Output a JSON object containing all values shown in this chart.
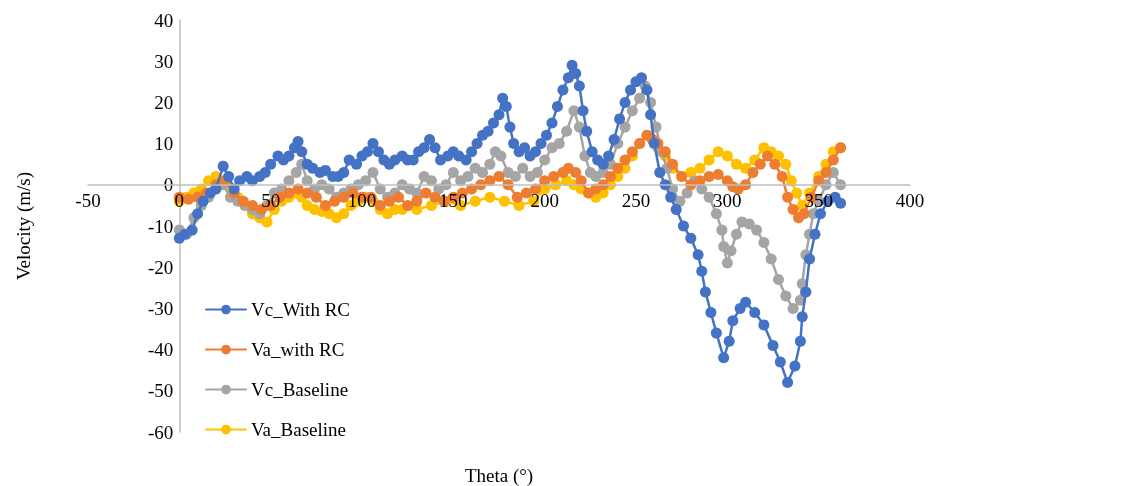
{
  "chart_data": {
    "type": "line",
    "xlabel": "Theta (°)",
    "ylabel": "Velocity (m/s)",
    "xlim": [
      -50,
      400
    ],
    "xticks": [
      -50,
      0,
      50,
      100,
      150,
      200,
      250,
      300,
      350,
      400
    ],
    "ylim": [
      -60,
      40
    ],
    "yticks": [
      -60,
      -50,
      -40,
      -30,
      -20,
      -10,
      0,
      10,
      20,
      30,
      40
    ],
    "grid": false,
    "legend": "bottom left",
    "marker": "circle",
    "line_style": "solid",
    "series": [
      {
        "name": "Vc_With RC",
        "color": "#4472c4",
        "x": [
          0,
          3,
          7,
          10,
          13,
          17,
          20,
          24,
          27,
          30,
          33,
          37,
          40,
          44,
          47,
          50,
          54,
          57,
          60,
          63,
          65,
          67,
          70,
          73,
          77,
          80,
          84,
          87,
          90,
          93,
          97,
          100,
          103,
          106,
          109,
          112,
          115,
          118,
          122,
          125,
          128,
          131,
          134,
          137,
          140,
          143,
          147,
          150,
          153,
          157,
          160,
          163,
          166,
          169,
          172,
          175,
          177,
          179,
          181,
          183,
          186,
          189,
          192,
          195,
          198,
          201,
          204,
          207,
          210,
          213,
          215,
          217,
          219,
          221,
          223,
          226,
          229,
          232,
          235,
          238,
          241,
          244,
          247,
          250,
          253,
          256,
          258,
          260,
          263,
          266,
          269,
          272,
          276,
          280,
          284,
          286,
          288,
          291,
          294,
          298,
          301,
          303,
          307,
          310,
          315,
          320,
          325,
          329,
          333,
          337,
          340,
          341,
          343,
          345,
          348,
          351,
          355,
          359,
          362
        ],
        "values": [
          -13,
          -12,
          -11,
          -7,
          -4,
          -2,
          -1,
          4.5,
          2,
          -1,
          1,
          2,
          1,
          2,
          3,
          5,
          7,
          6,
          7,
          9,
          10.5,
          8,
          5,
          4,
          3,
          3.5,
          2,
          2,
          3,
          6,
          5,
          7,
          8,
          10,
          8,
          6,
          5,
          6,
          7,
          6,
          6,
          8,
          9,
          11,
          9,
          6,
          7,
          8,
          7,
          6,
          8,
          10,
          12,
          13,
          15,
          17,
          21,
          19,
          14,
          10,
          8,
          9,
          7,
          8,
          10,
          12,
          15,
          19,
          23,
          26,
          29,
          27,
          24,
          18,
          13,
          8,
          6,
          5,
          7,
          11,
          16,
          20,
          23,
          25,
          26,
          23,
          17,
          10,
          3,
          0,
          -3,
          -6,
          -10,
          -13,
          -17,
          -21,
          -26,
          -31,
          -36,
          -42,
          -38,
          -33,
          -30,
          -28.5,
          -31,
          -34,
          -39,
          -43,
          -48,
          -44,
          -38,
          -32,
          -26,
          -18,
          -12,
          -7,
          -4,
          -3,
          -4.5
        ]
      },
      {
        "name": "Va_with RC",
        "color": "#ed7d31",
        "x": [
          0,
          5,
          10,
          15,
          20,
          25,
          30,
          35,
          40,
          45,
          50,
          55,
          60,
          65,
          70,
          75,
          80,
          85,
          90,
          95,
          100,
          105,
          110,
          115,
          120,
          125,
          130,
          135,
          140,
          145,
          150,
          155,
          160,
          165,
          170,
          175,
          180,
          185,
          190,
          195,
          200,
          205,
          210,
          213,
          217,
          220,
          224,
          228,
          232,
          236,
          240,
          244,
          248,
          252,
          256,
          259,
          262,
          266,
          270,
          275,
          280,
          285,
          290,
          295,
          300,
          303,
          306,
          310,
          314,
          318,
          322,
          326,
          330,
          333,
          336,
          339,
          342,
          346,
          350,
          354,
          358,
          362
        ],
        "values": [
          -3,
          -3.5,
          -3,
          -2,
          0,
          1,
          -2,
          -4,
          -5,
          -6,
          -5,
          -3,
          -2,
          -1,
          -2,
          -3,
          -5,
          -4,
          -3,
          -2,
          -3,
          -3,
          -5,
          -4,
          -3,
          -5,
          -4,
          -2,
          -3,
          -4,
          -3,
          -2,
          -1,
          0,
          1,
          2,
          0,
          -3,
          -2,
          -1,
          1,
          2,
          3,
          4,
          3,
          1,
          -2,
          -1,
          0,
          2,
          4,
          6,
          8,
          10,
          12,
          11,
          10,
          8,
          5,
          2,
          0,
          1,
          2,
          2.5,
          1,
          -0.5,
          -1,
          0,
          3,
          5,
          7,
          5,
          2,
          -3,
          -6,
          -8,
          -7,
          -3,
          1,
          3,
          6,
          9
        ]
      },
      {
        "name": "Vc_Baseline",
        "color": "#a5a5a5",
        "x": [
          0,
          4,
          8,
          12,
          16,
          20,
          24,
          28,
          32,
          36,
          40,
          44,
          48,
          52,
          56,
          60,
          64,
          67,
          70,
          74,
          78,
          82,
          86,
          90,
          94,
          98,
          102,
          106,
          110,
          114,
          118,
          122,
          126,
          130,
          134,
          138,
          142,
          146,
          150,
          154,
          158,
          162,
          166,
          170,
          173,
          176,
          180,
          184,
          188,
          192,
          196,
          200,
          204,
          208,
          212,
          216,
          219,
          222,
          225,
          228,
          232,
          236,
          240,
          244,
          248,
          252,
          255,
          258,
          261,
          264,
          267,
          270,
          274,
          278,
          282,
          286,
          290,
          294,
          297,
          298,
          300,
          302,
          305,
          308,
          312,
          316,
          320,
          324,
          328,
          332,
          336,
          340,
          341,
          343,
          345,
          347,
          350,
          354,
          358,
          362
        ],
        "values": [
          -11,
          -12,
          -8,
          -5,
          -3,
          -1,
          0,
          -3,
          -4,
          -5,
          -6,
          -7,
          -5,
          -2,
          -1,
          1,
          3,
          5,
          1,
          -1,
          0,
          -1,
          -3,
          -2,
          -1,
          0,
          1,
          3,
          -1,
          -3,
          -2,
          0,
          -1,
          -2,
          2,
          1,
          -1,
          0,
          3,
          1,
          2,
          4,
          3,
          5,
          8,
          7,
          3,
          2,
          4,
          2,
          3,
          6,
          9,
          10,
          13,
          18,
          14,
          7,
          3,
          2,
          3,
          5,
          10,
          14,
          18,
          21,
          24,
          20,
          14,
          8,
          4,
          -1,
          -4,
          -2,
          1,
          -1,
          -3,
          -7,
          -11,
          -15,
          -19,
          -16,
          -12,
          -9,
          -9.5,
          -11,
          -14,
          -18,
          -23,
          -27,
          -30,
          -28,
          -24,
          -17,
          -12,
          -7,
          -4,
          0,
          3,
          0
        ]
      },
      {
        "name": "Va_Baseline",
        "color": "#ffc000",
        "x": [
          0,
          4,
          8,
          12,
          16,
          20,
          24,
          28,
          32,
          36,
          40,
          44,
          48,
          52,
          56,
          60,
          64,
          67,
          70,
          74,
          78,
          82,
          86,
          90,
          94,
          98,
          102,
          106,
          110,
          114,
          118,
          122,
          130,
          138,
          146,
          154,
          162,
          170,
          178,
          186,
          194,
          200,
          206,
          212,
          216,
          220,
          224,
          228,
          232,
          236,
          240,
          244,
          248,
          252,
          256,
          259,
          262,
          266,
          270,
          275,
          280,
          285,
          290,
          295,
          300,
          305,
          310,
          315,
          320,
          324,
          328,
          332,
          335,
          338,
          341,
          345,
          350,
          354,
          358,
          362
        ],
        "values": [
          -4,
          -3,
          -2,
          -1,
          1,
          2,
          1,
          -1,
          -3,
          -5,
          -7,
          -8,
          -9,
          -6,
          -4,
          -3,
          -2,
          -3,
          -5,
          -6,
          -6.5,
          -7,
          -8,
          -7,
          -5,
          -4,
          -3,
          -4,
          -6,
          -7,
          -6,
          -6,
          -6,
          -5,
          -4,
          -5,
          -4,
          -3,
          -4,
          -5,
          -4,
          -1,
          0,
          1,
          0,
          -1,
          -2,
          -3,
          -2,
          0,
          2,
          4,
          7,
          10,
          12,
          11,
          9,
          7,
          4,
          2,
          3,
          4,
          6,
          8,
          7,
          5,
          4,
          6,
          9,
          8,
          7,
          5,
          1,
          -2,
          -5,
          -2,
          2,
          5,
          8,
          9
        ]
      }
    ]
  }
}
